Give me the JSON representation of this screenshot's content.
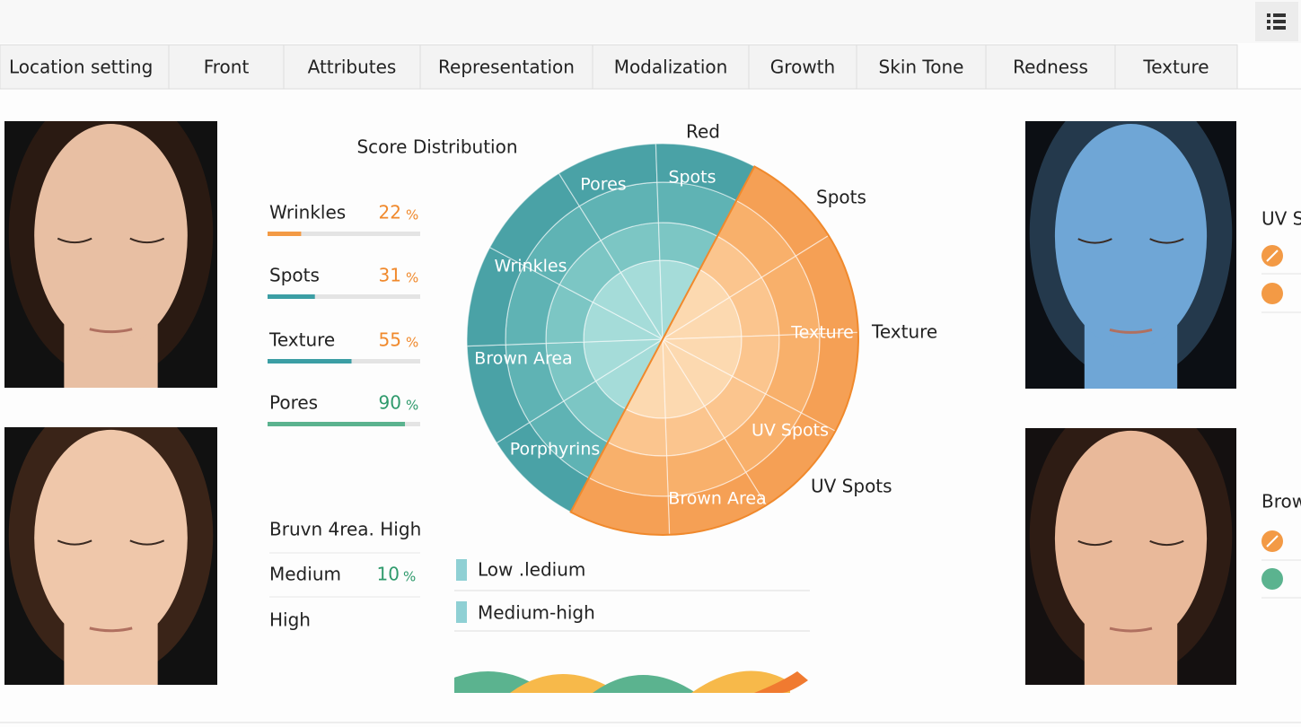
{
  "toolbar": {
    "tabs": [
      "Location setting",
      "Front",
      "Attributes",
      "Representation",
      "Modalization",
      "Growth",
      "Skin Tone",
      "Redness",
      "Texture"
    ]
  },
  "summary": {
    "title": "Score Distribution",
    "metrics": [
      {
        "name": "Wrinkles",
        "value": 22,
        "unit": "%",
        "color": "#f0892c",
        "bar_color": "#f39a45"
      },
      {
        "name": "Spots",
        "value": 31,
        "unit": "%",
        "color": "#f0892c",
        "bar_color": "#3b9ea4"
      },
      {
        "name": "Texture",
        "value": 55,
        "unit": "%",
        "color": "#f0892c",
        "bar_color": "#3b9ea4"
      },
      {
        "name": "Pores",
        "value": 90,
        "unit": "%",
        "color": "#2f9a6c",
        "bar_color": "#5bb38f"
      }
    ]
  },
  "wheel": {
    "sector_labels": [
      "Pores",
      "Spots",
      "Wrinkles",
      "Brown Area",
      "Porphyrins",
      "Texture",
      "UV Spots",
      "Brown Area"
    ],
    "outer_labels": [
      "Red",
      "Spots",
      "Texture",
      "UV Spots"
    ]
  },
  "levels": {
    "heading": "Bruvn 4rea. High",
    "rows": [
      {
        "name": "Medium",
        "value": 10,
        "unit": "%"
      },
      {
        "name": "High"
      }
    ]
  },
  "legend": [
    "Low .ledium",
    "Medium-high"
  ],
  "side_panels": [
    "UV S",
    "Brow"
  ]
}
